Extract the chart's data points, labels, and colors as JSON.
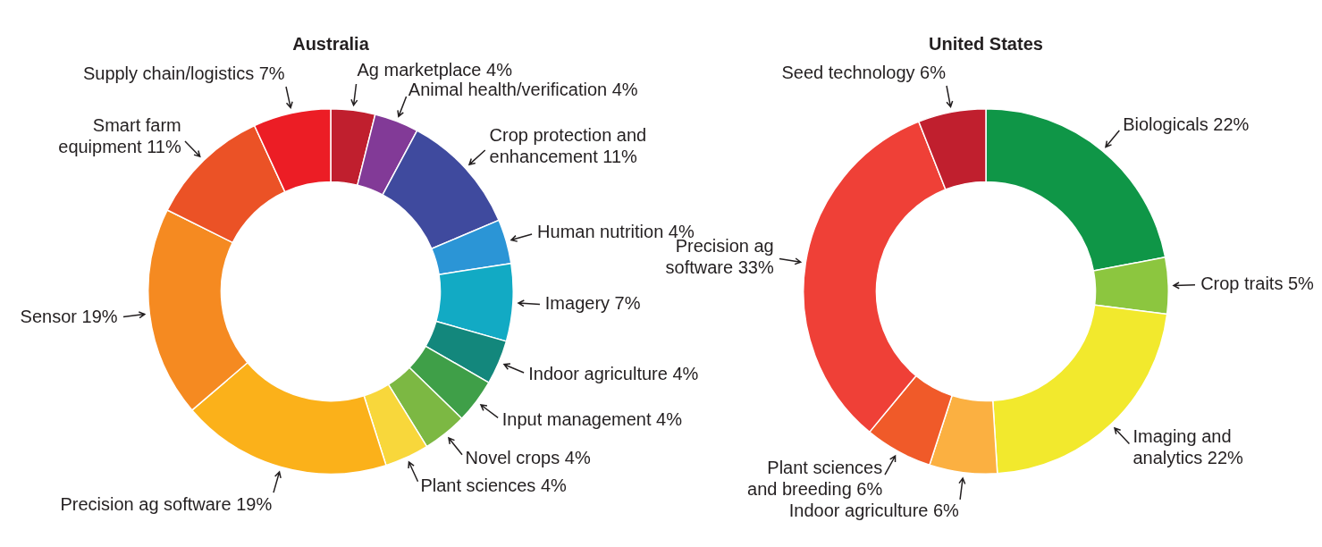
{
  "chart_data": [
    {
      "type": "donut",
      "title": "Australia",
      "categories": [
        "Ag marketplace",
        "Animal health/verification",
        "Crop protection and enhancement",
        "Human nutrition",
        "Imagery",
        "Indoor agriculture",
        "Input management",
        "Novel crops",
        "Plant sciences",
        "Precision ag software",
        "Sensor",
        "Smart farm equipment",
        "Supply chain/logistics"
      ],
      "values": [
        4,
        4,
        11,
        4,
        7,
        4,
        4,
        4,
        4,
        19,
        19,
        11,
        7
      ],
      "colors": [
        "#c01f2e",
        "#823a97",
        "#3f4a9e",
        "#2b95d6",
        "#12aac4",
        "#13877c",
        "#3f9f48",
        "#7cb843",
        "#f8d73b",
        "#fbb11a",
        "#f58a21",
        "#eb5226",
        "#ec1d25"
      ],
      "value_labels": [
        "4%",
        "4%",
        "11%",
        "4%",
        "7%",
        "4%",
        "4%",
        "4%",
        "4%",
        "19%",
        "19%",
        "11%",
        "7%"
      ],
      "data_labels": true
    },
    {
      "type": "donut",
      "title": "United States",
      "categories": [
        "Biologicals",
        "Crop traits",
        "Imaging and analytics",
        "Indoor agriculture",
        "Plant sciences and breeding",
        "Precision ag software",
        "Seed technology"
      ],
      "values": [
        22,
        5,
        22,
        6,
        6,
        33,
        6
      ],
      "colors": [
        "#0f9647",
        "#8cc63f",
        "#f2e92d",
        "#fbb041",
        "#f05a29",
        "#ef4037",
        "#c01f2e"
      ],
      "value_labels": [
        "22%",
        "5%",
        "22%",
        "6%",
        "6%",
        "33%",
        "6%"
      ],
      "data_labels": true
    }
  ]
}
